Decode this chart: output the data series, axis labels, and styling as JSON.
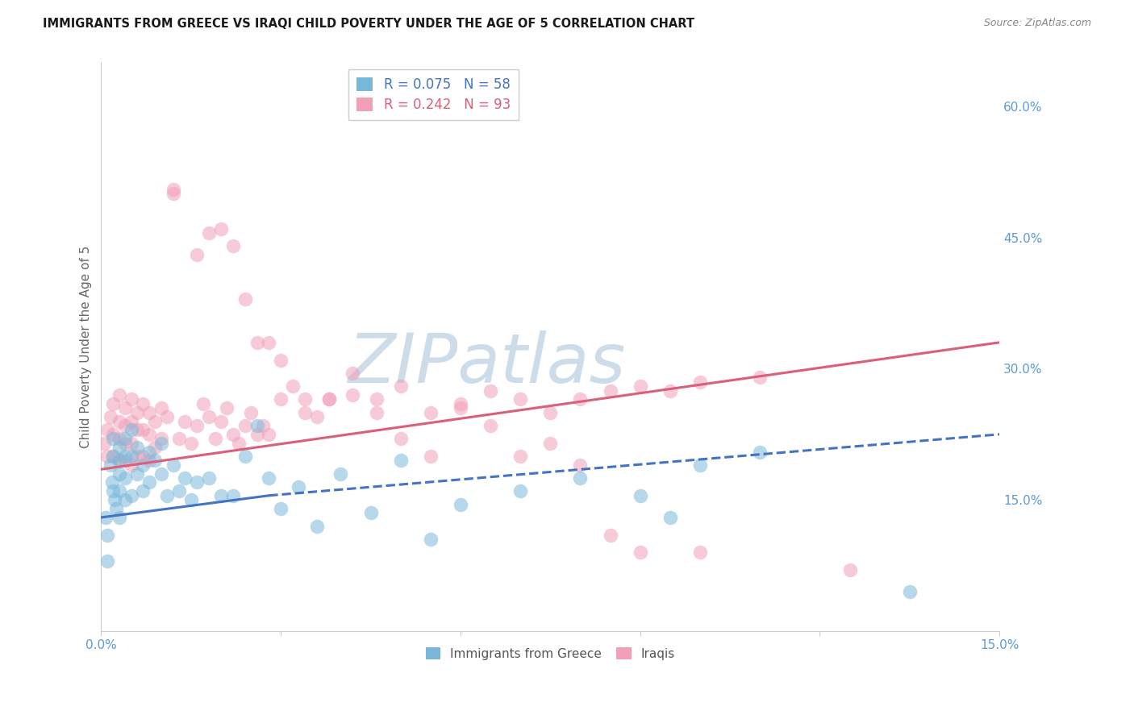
{
  "title": "IMMIGRANTS FROM GREECE VS IRAQI CHILD POVERTY UNDER THE AGE OF 5 CORRELATION CHART",
  "source": "Source: ZipAtlas.com",
  "ylabel": "Child Poverty Under the Age of 5",
  "x_min": 0.0,
  "x_max": 0.15,
  "y_min": 0.0,
  "y_max": 0.65,
  "yticks": [
    0.0,
    0.15,
    0.3,
    0.45,
    0.6
  ],
  "ytick_labels": [
    "",
    "15.0%",
    "30.0%",
    "45.0%",
    "60.0%"
  ],
  "xticks": [
    0.0,
    0.03,
    0.06,
    0.09,
    0.12,
    0.15
  ],
  "xtick_labels": [
    "0.0%",
    "",
    "",
    "",
    "",
    "15.0%"
  ],
  "legend_R1": "R = 0.075",
  "legend_N1": "N = 58",
  "legend_R2": "R = 0.242",
  "legend_N2": "N = 93",
  "color_greece": "#7ab8d9",
  "color_iraq": "#f2a0b8",
  "color_trendline_greece": "#4472c4",
  "color_trendline_iraq": "#d95f7a",
  "color_axis_labels": "#5b9bd5",
  "color_grid": "#d8d8d8",
  "color_spine": "#cccccc",
  "background_color": "#ffffff",
  "watermark_text": "ZIPatlas",
  "watermark_color": "#ccdce8",
  "scatter_alpha": 0.55,
  "scatter_size": 160,
  "figsize": [
    14.06,
    8.92
  ],
  "dpi": 100,
  "trendline_iraq": [
    0.0,
    0.15,
    0.185,
    0.33
  ],
  "trendline_greece_solid": [
    0.0,
    0.028,
    0.13,
    0.155
  ],
  "trendline_greece_dashed": [
    0.028,
    0.15,
    0.155,
    0.225
  ],
  "greece_x": [
    0.0008,
    0.001,
    0.001,
    0.0015,
    0.0018,
    0.002,
    0.002,
    0.002,
    0.0022,
    0.0025,
    0.003,
    0.003,
    0.003,
    0.003,
    0.003,
    0.004,
    0.004,
    0.004,
    0.004,
    0.005,
    0.005,
    0.005,
    0.006,
    0.006,
    0.007,
    0.007,
    0.008,
    0.008,
    0.009,
    0.01,
    0.01,
    0.011,
    0.012,
    0.013,
    0.014,
    0.015,
    0.016,
    0.018,
    0.02,
    0.022,
    0.024,
    0.026,
    0.028,
    0.03,
    0.033,
    0.036,
    0.04,
    0.045,
    0.05,
    0.055,
    0.06,
    0.07,
    0.08,
    0.09,
    0.095,
    0.1,
    0.11,
    0.135
  ],
  "greece_y": [
    0.13,
    0.11,
    0.08,
    0.19,
    0.17,
    0.22,
    0.2,
    0.16,
    0.15,
    0.14,
    0.21,
    0.195,
    0.18,
    0.16,
    0.13,
    0.22,
    0.2,
    0.175,
    0.15,
    0.23,
    0.2,
    0.155,
    0.21,
    0.18,
    0.19,
    0.16,
    0.205,
    0.17,
    0.195,
    0.215,
    0.18,
    0.155,
    0.19,
    0.16,
    0.175,
    0.15,
    0.17,
    0.175,
    0.155,
    0.155,
    0.2,
    0.235,
    0.175,
    0.14,
    0.165,
    0.12,
    0.18,
    0.135,
    0.195,
    0.105,
    0.145,
    0.16,
    0.175,
    0.155,
    0.13,
    0.19,
    0.205,
    0.045
  ],
  "iraq_x": [
    0.0005,
    0.001,
    0.001,
    0.0015,
    0.002,
    0.002,
    0.002,
    0.003,
    0.003,
    0.003,
    0.003,
    0.004,
    0.004,
    0.004,
    0.004,
    0.005,
    0.005,
    0.005,
    0.005,
    0.006,
    0.006,
    0.006,
    0.007,
    0.007,
    0.007,
    0.008,
    0.008,
    0.008,
    0.009,
    0.009,
    0.01,
    0.01,
    0.011,
    0.012,
    0.012,
    0.013,
    0.014,
    0.015,
    0.016,
    0.017,
    0.018,
    0.019,
    0.02,
    0.021,
    0.022,
    0.023,
    0.024,
    0.025,
    0.026,
    0.027,
    0.028,
    0.03,
    0.032,
    0.034,
    0.036,
    0.038,
    0.042,
    0.046,
    0.05,
    0.055,
    0.06,
    0.065,
    0.07,
    0.075,
    0.08,
    0.085,
    0.09,
    0.095,
    0.1,
    0.11,
    0.016,
    0.018,
    0.02,
    0.022,
    0.024,
    0.026,
    0.028,
    0.03,
    0.034,
    0.038,
    0.042,
    0.046,
    0.05,
    0.055,
    0.06,
    0.065,
    0.07,
    0.075,
    0.08,
    0.085,
    0.09,
    0.1,
    0.125
  ],
  "iraq_y": [
    0.215,
    0.23,
    0.2,
    0.245,
    0.26,
    0.225,
    0.2,
    0.27,
    0.24,
    0.22,
    0.195,
    0.255,
    0.235,
    0.215,
    0.195,
    0.265,
    0.24,
    0.215,
    0.19,
    0.25,
    0.23,
    0.2,
    0.26,
    0.23,
    0.2,
    0.25,
    0.225,
    0.195,
    0.24,
    0.21,
    0.255,
    0.22,
    0.245,
    0.5,
    0.505,
    0.22,
    0.24,
    0.215,
    0.235,
    0.26,
    0.245,
    0.22,
    0.24,
    0.255,
    0.225,
    0.215,
    0.235,
    0.25,
    0.225,
    0.235,
    0.225,
    0.265,
    0.28,
    0.25,
    0.245,
    0.265,
    0.27,
    0.265,
    0.28,
    0.25,
    0.255,
    0.275,
    0.265,
    0.25,
    0.265,
    0.275,
    0.28,
    0.275,
    0.285,
    0.29,
    0.43,
    0.455,
    0.46,
    0.44,
    0.38,
    0.33,
    0.33,
    0.31,
    0.265,
    0.265,
    0.295,
    0.25,
    0.22,
    0.2,
    0.26,
    0.235,
    0.2,
    0.215,
    0.19,
    0.11,
    0.09,
    0.09,
    0.07
  ]
}
